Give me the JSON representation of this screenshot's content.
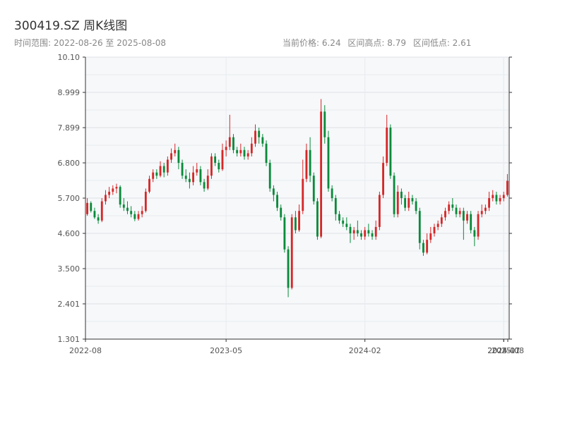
{
  "header": {
    "title": "300419.SZ 周K线图",
    "subtitle": "时间范围: 2022-08-26 至 2025-08-08",
    "current_price": "当前价格: 6.24",
    "high": "区间高点: 8.79",
    "low": "区间低点: 2.61"
  },
  "colors": {
    "up": "#d62728",
    "down": "#0a8a3a",
    "plot_bg": "#f6f8fa",
    "grid": "#dde1e6",
    "axis": "#333333"
  },
  "chart_data": {
    "type": "candlestick",
    "title": "300419.SZ 周K线图",
    "ylim": [
      1.301,
      10.1
    ],
    "y_ticks": [
      "1.301",
      "2.401",
      "3.500",
      "4.600",
      "5.700",
      "6.800",
      "7.899",
      "8.999",
      "10.10"
    ],
    "x_ticks": [
      "2022-08",
      "2023-05",
      "2024-02",
      "2024-11",
      "2025-07",
      "2025-08"
    ],
    "grid": true,
    "series": [
      {
        "values": [
          [
            5.2,
            5.55,
            5.15,
            5.7
          ],
          [
            5.55,
            5.3,
            5.25,
            5.6
          ],
          [
            5.3,
            5.1,
            5.05,
            5.4
          ],
          [
            5.1,
            5.0,
            4.9,
            5.2
          ],
          [
            5.0,
            5.6,
            4.95,
            5.7
          ],
          [
            5.6,
            5.8,
            5.5,
            5.95
          ],
          [
            5.8,
            5.9,
            5.7,
            6.05
          ],
          [
            5.9,
            6.0,
            5.8,
            6.1
          ],
          [
            6.0,
            6.05,
            5.85,
            6.15
          ],
          [
            6.05,
            5.5,
            5.4,
            6.1
          ],
          [
            5.5,
            5.4,
            5.3,
            5.7
          ],
          [
            5.4,
            5.3,
            5.2,
            5.6
          ],
          [
            5.3,
            5.2,
            5.1,
            5.45
          ],
          [
            5.2,
            5.05,
            4.98,
            5.3
          ],
          [
            5.05,
            5.2,
            5.0,
            5.3
          ],
          [
            5.2,
            5.3,
            5.1,
            5.45
          ],
          [
            5.3,
            5.9,
            5.25,
            6.0
          ],
          [
            5.9,
            6.3,
            5.85,
            6.4
          ],
          [
            6.3,
            6.5,
            6.2,
            6.6
          ],
          [
            6.5,
            6.4,
            6.3,
            6.6
          ],
          [
            6.4,
            6.7,
            6.35,
            6.85
          ],
          [
            6.7,
            6.5,
            6.35,
            6.8
          ],
          [
            6.5,
            6.9,
            6.4,
            7.0
          ],
          [
            6.9,
            7.1,
            6.8,
            7.25
          ],
          [
            7.1,
            7.2,
            7.0,
            7.4
          ],
          [
            7.2,
            6.8,
            6.6,
            7.3
          ],
          [
            6.8,
            6.4,
            6.3,
            6.9
          ],
          [
            6.4,
            6.3,
            6.2,
            6.6
          ],
          [
            6.3,
            6.2,
            6.0,
            6.5
          ],
          [
            6.2,
            6.5,
            6.1,
            6.7
          ],
          [
            6.5,
            6.6,
            6.4,
            6.8
          ],
          [
            6.6,
            6.2,
            6.1,
            6.7
          ],
          [
            6.2,
            6.0,
            5.9,
            6.3
          ],
          [
            6.0,
            6.4,
            5.95,
            6.6
          ],
          [
            6.4,
            7.0,
            6.3,
            7.1
          ],
          [
            7.0,
            6.8,
            6.7,
            7.1
          ],
          [
            6.8,
            6.6,
            6.5,
            6.9
          ],
          [
            6.6,
            7.2,
            6.55,
            7.4
          ],
          [
            7.2,
            7.3,
            7.0,
            7.5
          ],
          [
            7.3,
            7.6,
            7.2,
            8.3
          ],
          [
            7.6,
            7.2,
            7.1,
            7.7
          ],
          [
            7.2,
            7.1,
            7.0,
            7.3
          ],
          [
            7.1,
            7.2,
            7.0,
            7.4
          ],
          [
            7.2,
            7.0,
            6.9,
            7.3
          ],
          [
            7.0,
            7.1,
            6.9,
            7.2
          ],
          [
            7.1,
            7.4,
            7.0,
            7.6
          ],
          [
            7.4,
            7.8,
            7.3,
            8.0
          ],
          [
            7.8,
            7.6,
            7.4,
            7.9
          ],
          [
            7.6,
            7.4,
            7.3,
            7.7
          ],
          [
            7.4,
            6.8,
            6.7,
            7.5
          ],
          [
            6.8,
            6.0,
            5.9,
            6.9
          ],
          [
            6.0,
            5.8,
            5.6,
            6.1
          ],
          [
            5.8,
            5.4,
            5.3,
            5.9
          ],
          [
            5.4,
            5.1,
            5.0,
            5.5
          ],
          [
            5.1,
            4.1,
            4.0,
            5.2
          ],
          [
            4.1,
            2.9,
            2.61,
            4.2
          ],
          [
            2.9,
            5.1,
            2.85,
            5.2
          ],
          [
            5.1,
            4.7,
            4.6,
            5.3
          ],
          [
            4.7,
            5.3,
            4.65,
            5.5
          ],
          [
            5.3,
            6.3,
            5.2,
            6.9
          ],
          [
            6.3,
            7.2,
            6.2,
            7.4
          ],
          [
            7.2,
            6.4,
            6.2,
            7.6
          ],
          [
            6.4,
            5.6,
            5.5,
            6.5
          ],
          [
            5.6,
            4.5,
            4.4,
            5.7
          ],
          [
            4.5,
            8.4,
            4.45,
            8.79
          ],
          [
            8.4,
            7.6,
            7.4,
            8.6
          ],
          [
            7.6,
            6.0,
            5.9,
            7.8
          ],
          [
            6.0,
            5.7,
            5.6,
            6.1
          ],
          [
            5.7,
            5.2,
            5.0,
            5.8
          ],
          [
            5.2,
            5.0,
            4.9,
            5.3
          ],
          [
            5.0,
            4.9,
            4.8,
            5.1
          ],
          [
            4.9,
            4.8,
            4.7,
            5.1
          ],
          [
            4.8,
            4.6,
            4.3,
            4.9
          ],
          [
            4.6,
            4.7,
            4.4,
            4.8
          ],
          [
            4.7,
            4.6,
            4.5,
            5.0
          ],
          [
            4.6,
            4.5,
            4.4,
            4.7
          ],
          [
            4.5,
            4.7,
            4.4,
            4.8
          ],
          [
            4.7,
            4.6,
            4.5,
            4.9
          ],
          [
            4.6,
            4.5,
            4.4,
            4.7
          ],
          [
            4.5,
            4.8,
            4.4,
            5.0
          ],
          [
            4.8,
            5.8,
            4.7,
            5.9
          ],
          [
            5.8,
            6.8,
            5.7,
            7.0
          ],
          [
            6.8,
            7.9,
            6.7,
            8.3
          ],
          [
            7.9,
            6.4,
            6.3,
            8.0
          ],
          [
            6.4,
            5.2,
            5.1,
            6.5
          ],
          [
            5.2,
            5.9,
            5.1,
            6.1
          ],
          [
            5.9,
            5.7,
            5.5,
            6.0
          ],
          [
            5.7,
            5.4,
            5.3,
            5.8
          ],
          [
            5.4,
            5.7,
            5.3,
            5.9
          ],
          [
            5.7,
            5.6,
            5.5,
            5.8
          ],
          [
            5.6,
            5.3,
            5.2,
            5.7
          ],
          [
            5.3,
            4.3,
            4.1,
            5.4
          ],
          [
            4.3,
            4.0,
            3.9,
            4.4
          ],
          [
            4.0,
            4.4,
            3.95,
            4.6
          ],
          [
            4.4,
            4.6,
            4.3,
            4.8
          ],
          [
            4.6,
            4.8,
            4.5,
            4.9
          ],
          [
            4.8,
            4.9,
            4.7,
            5.0
          ],
          [
            4.9,
            5.1,
            4.8,
            5.2
          ],
          [
            5.1,
            5.3,
            5.0,
            5.4
          ],
          [
            5.3,
            5.5,
            5.2,
            5.6
          ],
          [
            5.5,
            5.4,
            5.3,
            5.7
          ],
          [
            5.4,
            5.2,
            5.1,
            5.5
          ],
          [
            5.2,
            5.3,
            5.1,
            5.4
          ],
          [
            5.3,
            5.0,
            4.4,
            5.4
          ],
          [
            5.0,
            5.2,
            4.9,
            5.3
          ],
          [
            5.2,
            4.7,
            4.6,
            5.3
          ],
          [
            4.7,
            4.5,
            4.2,
            4.8
          ],
          [
            4.5,
            5.2,
            4.4,
            5.3
          ],
          [
            5.2,
            5.3,
            5.1,
            5.5
          ],
          [
            5.3,
            5.4,
            5.2,
            5.5
          ],
          [
            5.4,
            5.7,
            5.3,
            5.9
          ],
          [
            5.7,
            5.8,
            5.6,
            5.95
          ],
          [
            5.8,
            5.6,
            5.5,
            5.9
          ],
          [
            5.6,
            5.7,
            5.5,
            5.8
          ],
          [
            5.7,
            5.8,
            5.6,
            5.9
          ],
          [
            5.8,
            6.24,
            5.75,
            6.45
          ]
        ],
        "format": "[open, close, low, high]"
      }
    ]
  }
}
